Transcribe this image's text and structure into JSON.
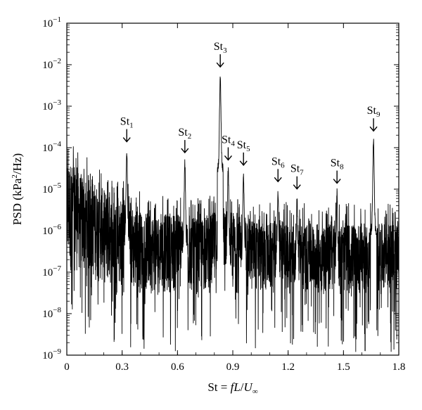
{
  "chart_data": {
    "type": "line",
    "title": "",
    "xlabel_parts": [
      "St = ",
      "f",
      "L",
      "/",
      "U",
      "∞"
    ],
    "ylabel_parts": [
      "PSD (kPa",
      "2",
      "/Hz)"
    ],
    "xlim": [
      0,
      1.8
    ],
    "ylim": [
      1e-09,
      0.1
    ],
    "yscale": "log",
    "grid": false,
    "legend": "none",
    "x_ticks": [
      0,
      0.3,
      0.6,
      0.9,
      1.2,
      1.5,
      1.8
    ],
    "x_tick_labels": [
      "0",
      "0.3",
      "0.6",
      "0.9",
      "1.2",
      "1.5",
      "1.8"
    ],
    "y_ticks": [
      1e-09,
      1e-08,
      1e-07,
      1e-06,
      1e-05,
      0.0001,
      0.001,
      0.01,
      0.1
    ],
    "y_tick_labels": [
      {
        "base": "10",
        "exp": "−9"
      },
      {
        "base": "10",
        "exp": "−8"
      },
      {
        "base": "10",
        "exp": "−7"
      },
      {
        "base": "10",
        "exp": "−6"
      },
      {
        "base": "10",
        "exp": "−5"
      },
      {
        "base": "10",
        "exp": "−4"
      },
      {
        "base": "10",
        "exp": "−3"
      },
      {
        "base": "10",
        "exp": "−2"
      },
      {
        "base": "10",
        "exp": "−1"
      }
    ],
    "series": [
      {
        "color": "#000000",
        "envelope_note_x": [
          0.0,
          0.05,
          0.1,
          0.15,
          0.2,
          0.25,
          0.3,
          0.35,
          0.4,
          0.45,
          0.5,
          0.55,
          0.6,
          0.65,
          0.7,
          0.75,
          0.8,
          0.85,
          0.9,
          0.95,
          1.0,
          1.05,
          1.1,
          1.15,
          1.2,
          1.25,
          1.3,
          1.35,
          1.4,
          1.45,
          1.5,
          1.55,
          1.6,
          1.65,
          1.7,
          1.75,
          1.8
        ],
        "envelope_upper": [
          6e-05,
          3e-05,
          2e-05,
          1.5e-05,
          1e-05,
          6e-06,
          6e-06,
          4e-06,
          3e-06,
          2.5e-06,
          2.5e-06,
          2.5e-06,
          3e-06,
          2e-06,
          2e-06,
          2e-06,
          3e-06,
          3e-06,
          3e-06,
          2e-06,
          2e-06,
          1.5e-06,
          1.5e-06,
          2e-06,
          1.5e-06,
          1.5e-06,
          1.5e-06,
          1.5e-06,
          1.5e-06,
          1.5e-06,
          1.5e-06,
          1.5e-06,
          1.5e-06,
          1.5e-06,
          1.5e-06,
          1.5e-06,
          1.5e-06
        ],
        "envelope_lower": [
          1e-07,
          1e-07,
          8e-08,
          6e-08,
          5e-08,
          4e-08,
          4e-08,
          3e-08,
          3e-08,
          3e-08,
          3e-08,
          3e-08,
          3e-08,
          3e-08,
          3e-08,
          3e-08,
          3e-08,
          3e-08,
          3e-08,
          3e-08,
          3e-08,
          3e-08,
          3e-08,
          3e-08,
          3e-08,
          3e-08,
          3e-08,
          3e-08,
          3e-08,
          3e-08,
          3e-08,
          3e-08,
          3e-08,
          3e-08,
          3e-08,
          3e-08,
          3e-08
        ],
        "peaks": [
          {
            "x": 0.325,
            "y": 0.00011
          },
          {
            "x": 0.64,
            "y": 6e-05
          },
          {
            "x": 0.832,
            "y": 0.007
          },
          {
            "x": 0.875,
            "y": 4e-05
          },
          {
            "x": 0.958,
            "y": 3e-05
          },
          {
            "x": 1.145,
            "y": 1.2e-05
          },
          {
            "x": 1.248,
            "y": 8e-06
          },
          {
            "x": 1.465,
            "y": 1.1e-05
          },
          {
            "x": 1.663,
            "y": 0.0002
          }
        ]
      }
    ],
    "annotations": [
      {
        "base": "St",
        "sub": "1",
        "x": 0.325,
        "y": 0.00011
      },
      {
        "base": "St",
        "sub": "2",
        "x": 0.64,
        "y": 6e-05
      },
      {
        "base": "St",
        "sub": "3",
        "x": 0.832,
        "y": 0.007
      },
      {
        "base": "St",
        "sub": "4",
        "x": 0.875,
        "y": 4e-05
      },
      {
        "base": "St",
        "sub": "5",
        "x": 0.958,
        "y": 3e-05
      },
      {
        "base": "St",
        "sub": "6",
        "x": 1.145,
        "y": 1.2e-05
      },
      {
        "base": "St",
        "sub": "7",
        "x": 1.248,
        "y": 8e-06
      },
      {
        "base": "St",
        "sub": "8",
        "x": 1.465,
        "y": 1.1e-05
      },
      {
        "base": "St",
        "sub": "9",
        "x": 1.663,
        "y": 0.0002
      }
    ]
  }
}
